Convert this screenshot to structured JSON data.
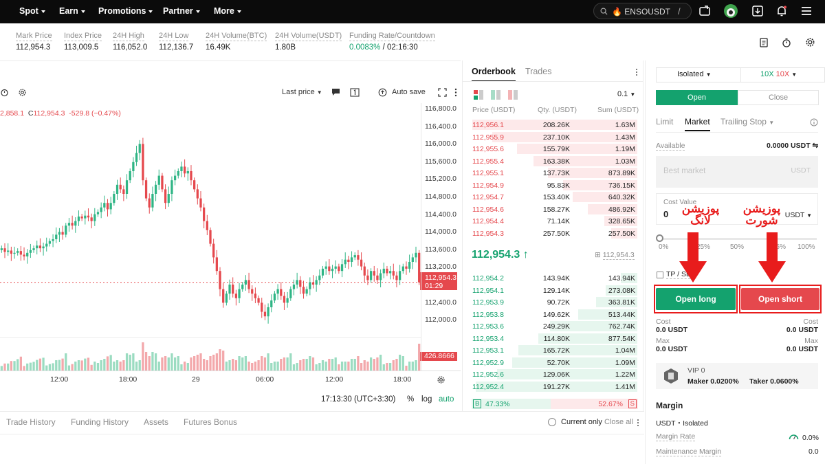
{
  "nav": {
    "items": [
      "Spot",
      "Earn",
      "Promotions",
      "Partner",
      "More"
    ],
    "search_text": "ENSOUSDT",
    "search_shortcut": "/"
  },
  "stats": [
    {
      "label": "Mark Price",
      "value": "112,954.3"
    },
    {
      "label": "Index Price",
      "value": "113,009.5"
    },
    {
      "label": "24H High",
      "value": "116,052.0"
    },
    {
      "label": "24H Low",
      "value": "112,136.7"
    },
    {
      "label": "24H Volume(BTC)",
      "value": "16.49K"
    },
    {
      "label": "24H Volume(USDT)",
      "value": "1.80B"
    }
  ],
  "funding": {
    "label": "Funding Rate/Countdown",
    "rate": "0.0083%",
    "countdown": "/ 02:16:30"
  },
  "chart_toolbar": {
    "last_price": "Last price",
    "autosave": "Auto save"
  },
  "chart_legend": {
    "open_tail": "2,858.1",
    "c_label": "C",
    "close": "112,954.3",
    "change": "-529.8 (−0.47%)"
  },
  "chart_data": {
    "type": "candlestick",
    "y_ticks": [
      "116,800.0",
      "116,400.0",
      "116,000.0",
      "115,600.0",
      "115,200.0",
      "114,800.0",
      "114,400.0",
      "114,000.0",
      "113,600.0",
      "113,200.0",
      "112,800.0",
      "112,400.0",
      "112,000.0"
    ],
    "x_ticks": [
      "12:00",
      "18:00",
      "29",
      "06:00",
      "12:00",
      "18:00"
    ],
    "last_price_tag": "112,954.3",
    "last_price_timer": "01:29",
    "volume_tag": "426.8666",
    "ylim": [
      111900,
      116900
    ],
    "close_series": [
      113700,
      113620,
      113650,
      113580,
      113600,
      113640,
      113560,
      113520,
      113600,
      113660,
      113700,
      113760,
      113700,
      113740,
      113800,
      113860,
      113900,
      114000,
      114060,
      114000,
      114200,
      114260,
      114200,
      114300,
      114400,
      114360,
      114420,
      114380,
      114300,
      114450,
      114500,
      114600,
      114700,
      114560,
      114700,
      114900,
      115100,
      115000,
      114900,
      115200,
      115400,
      115600,
      115800,
      116000,
      115200,
      114800,
      114600,
      114900,
      115100,
      115300,
      115000,
      114700,
      114900,
      115200,
      115300,
      115400,
      115500,
      115350,
      115400,
      115200,
      115000,
      114800,
      114600,
      114300,
      114100,
      113800,
      113500,
      113200,
      112800,
      112500,
      112700,
      112900,
      112700,
      112600,
      112800,
      112900,
      113000,
      112800,
      112700,
      112600,
      112500,
      112300,
      112200,
      112400,
      112550,
      112700,
      112800,
      112650,
      112500,
      112600,
      112800,
      112900,
      113000,
      112850,
      112700,
      112800,
      112950,
      112900,
      113000,
      113100,
      113250,
      113300,
      113200,
      113250,
      113300,
      113200,
      113350,
      113450,
      113400,
      113500,
      113550,
      113450,
      113300,
      113100,
      113000,
      113200,
      113100,
      113000,
      113150,
      113250,
      113150,
      113200,
      113100,
      113000,
      113200,
      113300,
      113250,
      113400,
      113500,
      113600,
      112950
    ]
  },
  "chart_footer": {
    "time": "17:13:30 (UTC+3:30)",
    "percent": "%",
    "log": "log",
    "auto": "auto"
  },
  "orderbook": {
    "tabs": [
      "Orderbook",
      "Trades"
    ],
    "precision": "0.1",
    "headers": [
      "Price (USDT)",
      "Qty. (USDT)",
      "Sum (USDT)"
    ],
    "asks": [
      {
        "price": "112,956.1",
        "qty": "208.26K",
        "sum": "1.63M"
      },
      {
        "price": "112,955.9",
        "qty": "237.10K",
        "sum": "1.43M"
      },
      {
        "price": "112,955.6",
        "qty": "155.79K",
        "sum": "1.19M"
      },
      {
        "price": "112,955.4",
        "qty": "163.38K",
        "sum": "1.03M"
      },
      {
        "price": "112,955.1",
        "qty": "137.73K",
        "sum": "873.89K"
      },
      {
        "price": "112,954.9",
        "qty": "95.83K",
        "sum": "736.15K"
      },
      {
        "price": "112,954.7",
        "qty": "153.40K",
        "sum": "640.32K"
      },
      {
        "price": "112,954.6",
        "qty": "158.27K",
        "sum": "486.92K"
      },
      {
        "price": "112,954.4",
        "qty": "71.14K",
        "sum": "328.65K"
      },
      {
        "price": "112,954.3",
        "qty": "257.50K",
        "sum": "257.50K"
      }
    ],
    "ask_depth": [
      1.0,
      0.88,
      0.73,
      0.63,
      0.54,
      0.45,
      0.39,
      0.3,
      0.2,
      0.16
    ],
    "mid_price": "112,954.3",
    "mid_arrow": "↑",
    "mark_small": "112,954.3",
    "bids": [
      {
        "price": "112,954.2",
        "qty": "143.94K",
        "sum": "143.94K"
      },
      {
        "price": "112,954.1",
        "qty": "129.14K",
        "sum": "273.08K"
      },
      {
        "price": "112,953.9",
        "qty": "90.72K",
        "sum": "363.81K"
      },
      {
        "price": "112,953.8",
        "qty": "149.62K",
        "sum": "513.44K"
      },
      {
        "price": "112,953.6",
        "qty": "249.29K",
        "sum": "762.74K"
      },
      {
        "price": "112,953.4",
        "qty": "114.80K",
        "sum": "877.54K"
      },
      {
        "price": "112,953.1",
        "qty": "165.72K",
        "sum": "1.04M"
      },
      {
        "price": "112,952.9",
        "qty": "52.70K",
        "sum": "1.09M"
      },
      {
        "price": "112,952.6",
        "qty": "129.06K",
        "sum": "1.22M"
      },
      {
        "price": "112,952.4",
        "qty": "191.27K",
        "sum": "1.41M"
      }
    ],
    "bid_depth": [
      0.1,
      0.19,
      0.25,
      0.36,
      0.53,
      0.6,
      0.72,
      0.76,
      0.85,
      0.98
    ],
    "buy_label": "B",
    "buy_pct": "47.33%",
    "buy_ratio": 0.4733,
    "sell_pct": "52.67%",
    "sell_label": "S"
  },
  "trade": {
    "margin_mode": "Isolated",
    "lev_long": "10X",
    "lev_short": "10X",
    "open_tab": "Open",
    "close_tab": "Close",
    "order_types": [
      "Limit",
      "Market",
      "Trailing Stop"
    ],
    "available_label": "Available",
    "available_value": "0.0000 USDT",
    "price_placeholder": "Best market",
    "price_unit": "USDT",
    "cost_label": "Cost Value",
    "cost_value": "0",
    "cost_unit": "USDT",
    "slider_marks": [
      "0%",
      "25%",
      "50%",
      "75%",
      "100%"
    ],
    "tpsl_label": "TP / SL",
    "open_long": "Open long",
    "open_short": "Open short",
    "cost_l_label": "Cost",
    "cost_l_val": "0.0 USDT",
    "max_l_label": "Max",
    "max_l_val": "0.0 USDT",
    "cost_r_label": "Cost",
    "cost_r_val": "0.0 USDT",
    "max_r_label": "Max",
    "max_r_val": "0.0 USDT",
    "vip": "VIP 0",
    "maker": "Maker 0.0200%",
    "taker": "Taker 0.0600%",
    "margin_title": "Margin",
    "margin_sub": "USDT・Isolated",
    "margin_rate_label": "Margin Rate",
    "margin_rate_val": "0.0%",
    "maint_label": "Maintenance Margin",
    "maint_val": "0.0"
  },
  "annotations": {
    "long": "پوزیشن لانگ",
    "short": "پوزیشن شورت"
  },
  "bottom_tabs": [
    "Trade History",
    "Funding History",
    "Assets",
    "Futures Bonus"
  ],
  "bottom_right": {
    "current_only": "Current only",
    "close_all": "Close all"
  },
  "colors": {
    "green": "#14a26e",
    "red": "#e5484d",
    "annotation": "#e81c1c"
  }
}
